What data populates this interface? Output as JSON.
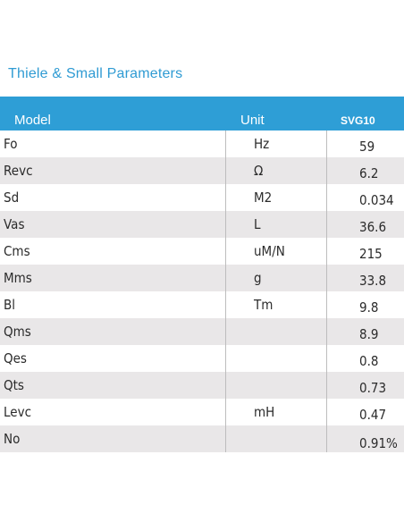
{
  "title": "Thiele & Small Parameters",
  "headers": {
    "model": "Model",
    "unit": "Unit",
    "value": "SVG10"
  },
  "rows": [
    {
      "param": "Fo",
      "unit": "Hz",
      "value": "59"
    },
    {
      "param": "Revc",
      "unit": "Ω",
      "value": "6.2"
    },
    {
      "param": "Sd",
      "unit": "M2",
      "value": "0.034"
    },
    {
      "param": "Vas",
      "unit": "L",
      "value": "36.6"
    },
    {
      "param": "Cms",
      "unit": "uM/N",
      "value": "215"
    },
    {
      "param": "Mms",
      "unit": "g",
      "value": "33.8"
    },
    {
      "param": "Bl",
      "unit": "Tm",
      "value": "9.8"
    },
    {
      "param": "Qms",
      "unit": "",
      "value": "8.9"
    },
    {
      "param": "Qes",
      "unit": "",
      "value": "0.8"
    },
    {
      "param": "Qts",
      "unit": "",
      "value": "0.73"
    },
    {
      "param": "Levc",
      "unit": "mH",
      "value": "0.47"
    },
    {
      "param": "No",
      "unit": "",
      "value": "0.91%"
    }
  ],
  "colors": {
    "title": "#2f9bd3",
    "header_bg": "#2e9ed6",
    "stripe": "#e9e7e8"
  }
}
